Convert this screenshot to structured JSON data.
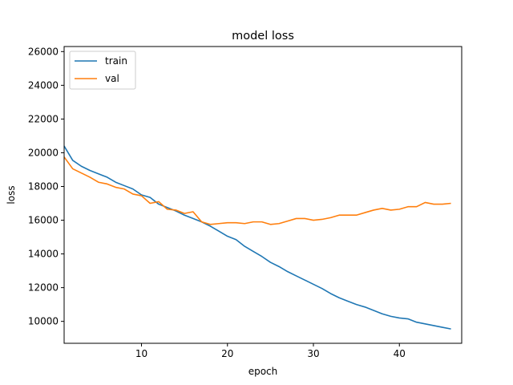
{
  "chart_data": {
    "type": "line",
    "title": "model loss",
    "xlabel": "epoch",
    "ylabel": "loss",
    "xlim": [
      1,
      47.25
    ],
    "ylim": [
      8700,
      26300
    ],
    "xticks": [
      10,
      20,
      30,
      40
    ],
    "yticks": [
      10000,
      12000,
      14000,
      16000,
      18000,
      20000,
      22000,
      24000,
      26000
    ],
    "grid": false,
    "legend_position": "top-left",
    "x": [
      1,
      2,
      3,
      4,
      5,
      6,
      7,
      8,
      9,
      10,
      11,
      12,
      13,
      14,
      15,
      16,
      17,
      18,
      19,
      20,
      21,
      22,
      23,
      24,
      25,
      26,
      27,
      28,
      29,
      30,
      31,
      32,
      33,
      34,
      35,
      36,
      37,
      38,
      39,
      40,
      41,
      42,
      43,
      44,
      45,
      46
    ],
    "series": [
      {
        "name": "train",
        "color": "#1f77b4",
        "values": [
          20400,
          19550,
          19200,
          18950,
          18750,
          18550,
          18250,
          18050,
          17850,
          17500,
          17350,
          16950,
          16750,
          16550,
          16300,
          16100,
          15900,
          15650,
          15350,
          15050,
          14850,
          14450,
          14150,
          13850,
          13500,
          13250,
          12950,
          12700,
          12450,
          12200,
          11950,
          11650,
          11400,
          11200,
          11000,
          10850,
          10650,
          10450,
          10300,
          10200,
          10150,
          9950,
          9850,
          9750,
          9650,
          9550
        ]
      },
      {
        "name": "val",
        "color": "#ff7f0e",
        "values": [
          19750,
          19050,
          18800,
          18550,
          18250,
          18150,
          17950,
          17850,
          17550,
          17450,
          17000,
          17100,
          16650,
          16600,
          16400,
          16500,
          15900,
          15750,
          15800,
          15850,
          15850,
          15800,
          15900,
          15900,
          15750,
          15800,
          15950,
          16100,
          16100,
          16000,
          16050,
          16150,
          16300,
          16300,
          16300,
          16450,
          16600,
          16700,
          16600,
          16650,
          16800,
          16800,
          17050,
          16950,
          16950,
          17000
        ]
      }
    ]
  }
}
